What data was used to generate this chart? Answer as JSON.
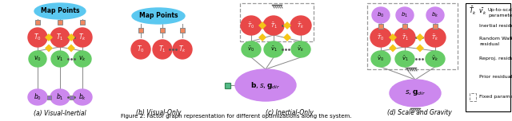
{
  "caption": "Figure 2: Factor graph representation for different optimizations along the system.",
  "subfig_labels": [
    "(a) Visual-Inertial",
    "(b) Visual-Only",
    "(c) Inertial-Only",
    "(d) Scale and Gravity"
  ],
  "colors": {
    "map_points_bg": "#5bc8f0",
    "T_node": "#e84848",
    "v_node": "#66cc66",
    "b_node": "#cc88ee",
    "inertial_residual": "#f5c518",
    "random_walk_residual": "#9966cc",
    "reproj_residual": "#f08860",
    "prior_residual": "#55bb88",
    "edge_color": "#666666",
    "background": "#ffffff"
  }
}
